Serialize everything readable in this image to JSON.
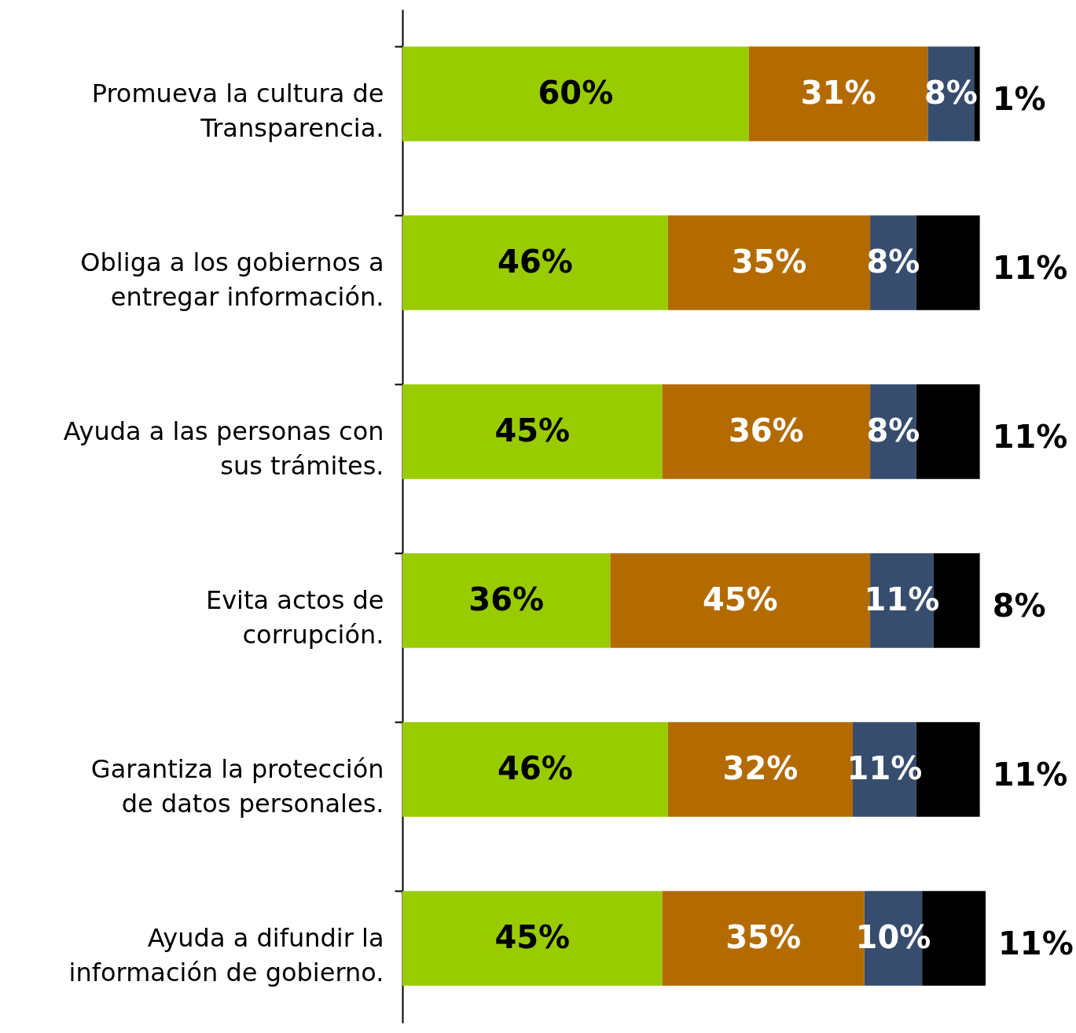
{
  "chart_data": {
    "type": "bar",
    "orientation": "horizontal",
    "stacked": true,
    "xlim": [
      0,
      101
    ],
    "tick_labels": "y",
    "grid": false,
    "categories": [
      "Promueva la cultura de Transparencia.",
      "Obliga a los gobiernos a entregar información.",
      "Ayuda a las personas con sus trámites.",
      "Evita actos de corrupción.",
      "Garantiza la protección de datos personales.",
      "Ayuda a difundir la información de gobierno."
    ],
    "series": [
      {
        "color": "#99cc00",
        "values": [
          60,
          46,
          45,
          36,
          46,
          45
        ],
        "value_labels": [
          "60%",
          "46%",
          "45%",
          "36%",
          "46%",
          "45%"
        ]
      },
      {
        "color": "#b36b00",
        "values": [
          31,
          35,
          36,
          45,
          32,
          35
        ],
        "value_labels": [
          "31%",
          "35%",
          "36%",
          "45%",
          "32%",
          "35%"
        ]
      },
      {
        "color": "#374d6e",
        "values": [
          8,
          8,
          8,
          11,
          11,
          10
        ],
        "value_labels": [
          "8%",
          "8%",
          "8%",
          "11%",
          "11%",
          "10%"
        ]
      },
      {
        "color": "#000000",
        "values": [
          1,
          11,
          11,
          8,
          11,
          11
        ],
        "value_labels": [
          "1%",
          "11%",
          "11%",
          "8%",
          "11%",
          "11%"
        ]
      }
    ]
  }
}
